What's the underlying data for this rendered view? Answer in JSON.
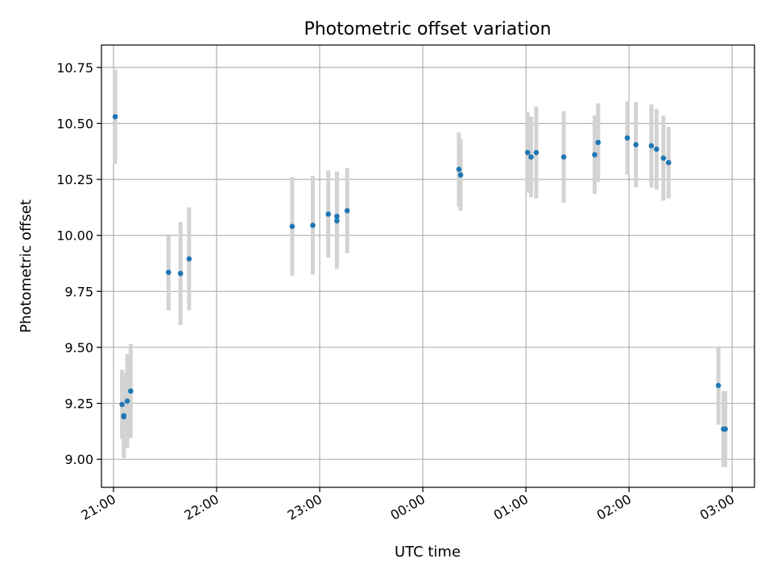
{
  "chart_data": {
    "type": "scatter",
    "title": "Photometric offset variation",
    "xlabel": "UTC time",
    "ylabel": "Photometric offset",
    "grid": true,
    "xlim": [
      "20:53",
      "03:13"
    ],
    "ylim": [
      8.875,
      10.85
    ],
    "x_ticks": [
      "21:00",
      "22:00",
      "23:00",
      "00:00",
      "01:00",
      "02:00",
      "03:00"
    ],
    "y_ticks": [
      "9.00",
      "9.25",
      "9.50",
      "9.75",
      "10.00",
      "10.25",
      "10.50",
      "10.75"
    ],
    "colors": {
      "point": "#1f77b4",
      "errorbar": "#d3d3d3",
      "grid": "#b0b0b0"
    },
    "points": [
      {
        "time": "21:01",
        "y": 10.53,
        "err": 0.21
      },
      {
        "time": "21:05",
        "y": 9.245,
        "err": 0.155
      },
      {
        "time": "21:06",
        "y": 9.195,
        "err": 0.19
      },
      {
        "time": "21:06",
        "y": 9.19,
        "err": 0.18
      },
      {
        "time": "21:08",
        "y": 9.26,
        "err": 0.21
      },
      {
        "time": "21:10",
        "y": 9.305,
        "err": 0.21
      },
      {
        "time": "21:32",
        "y": 9.835,
        "err": 0.17
      },
      {
        "time": "21:39",
        "y": 9.83,
        "err": 0.23
      },
      {
        "time": "21:44",
        "y": 9.895,
        "err": 0.23
      },
      {
        "time": "22:44",
        "y": 10.04,
        "err": 0.22
      },
      {
        "time": "22:56",
        "y": 10.045,
        "err": 0.22
      },
      {
        "time": "23:05",
        "y": 10.095,
        "err": 0.195
      },
      {
        "time": "23:10",
        "y": 10.085,
        "err": 0.2
      },
      {
        "time": "23:10",
        "y": 10.065,
        "err": 0.215
      },
      {
        "time": "23:16",
        "y": 10.11,
        "err": 0.19
      },
      {
        "time": "00:21",
        "y": 10.295,
        "err": 0.165
      },
      {
        "time": "00:22",
        "y": 10.27,
        "err": 0.16
      },
      {
        "time": "01:01",
        "y": 10.37,
        "err": 0.18
      },
      {
        "time": "01:03",
        "y": 10.35,
        "err": 0.18
      },
      {
        "time": "01:06",
        "y": 10.37,
        "err": 0.205
      },
      {
        "time": "01:22",
        "y": 10.35,
        "err": 0.205
      },
      {
        "time": "01:40",
        "y": 10.36,
        "err": 0.175
      },
      {
        "time": "01:42",
        "y": 10.415,
        "err": 0.175
      },
      {
        "time": "01:59",
        "y": 10.435,
        "err": 0.165
      },
      {
        "time": "02:04",
        "y": 10.405,
        "err": 0.19
      },
      {
        "time": "02:13",
        "y": 10.4,
        "err": 0.185
      },
      {
        "time": "02:16",
        "y": 10.385,
        "err": 0.18
      },
      {
        "time": "02:20",
        "y": 10.345,
        "err": 0.19
      },
      {
        "time": "02:23",
        "y": 10.325,
        "err": 0.16
      },
      {
        "time": "02:52",
        "y": 9.33,
        "err": 0.175
      },
      {
        "time": "02:55",
        "y": 9.135,
        "err": 0.17
      },
      {
        "time": "02:56",
        "y": 9.135,
        "err": 0.17
      }
    ]
  }
}
